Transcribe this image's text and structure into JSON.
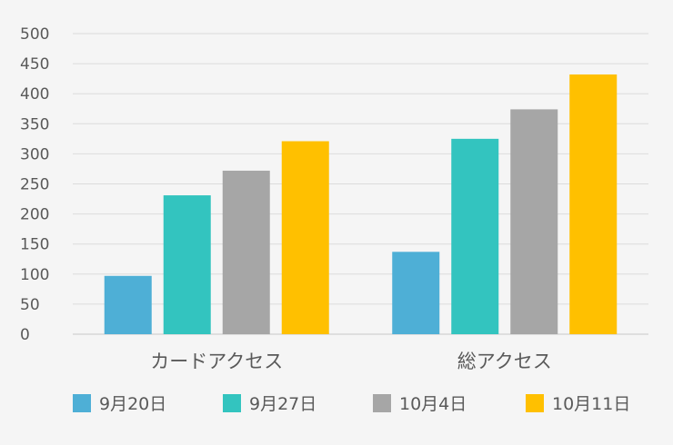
{
  "chart_data": {
    "type": "bar",
    "title": "",
    "xlabel": "",
    "ylabel": "",
    "categories": [
      "カードアクセス",
      "総アクセス"
    ],
    "ylim": [
      0,
      500
    ],
    "yticks": [
      0,
      50,
      100,
      150,
      200,
      250,
      300,
      350,
      400,
      450,
      500
    ],
    "grid": true,
    "legend_position": "bottom",
    "series": [
      {
        "name": "9月20日",
        "color": "#4eafd6",
        "values": [
          97,
          137
        ]
      },
      {
        "name": "9月27日",
        "color": "#33c4bf",
        "values": [
          231,
          325
        ]
      },
      {
        "name": "10月4日",
        "color": "#a6a6a6",
        "values": [
          272,
          374
        ]
      },
      {
        "name": "10月11日",
        "color": "#ffc000",
        "values": [
          321,
          432
        ]
      }
    ]
  }
}
